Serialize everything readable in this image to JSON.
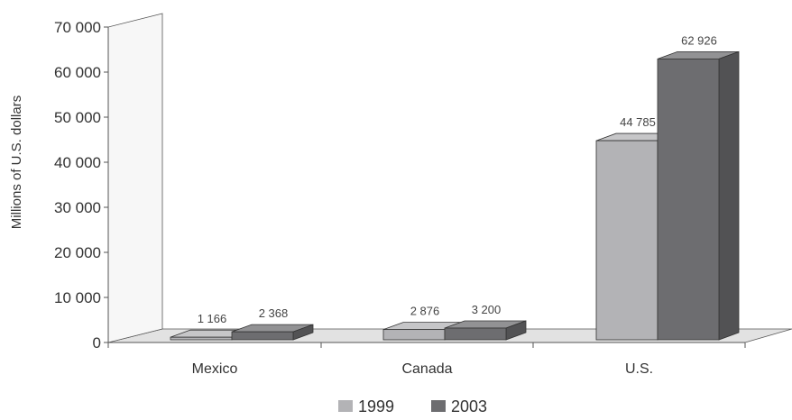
{
  "chart_data": {
    "type": "bar",
    "title": "",
    "xlabel": "",
    "ylabel": "Millions of U.S. dollars",
    "ylim": [
      0,
      70000
    ],
    "yticks": [
      0,
      10000,
      20000,
      30000,
      40000,
      50000,
      60000,
      70000
    ],
    "ytick_labels": [
      "0",
      "10 000",
      "20 000",
      "30 000",
      "40 000",
      "50 000",
      "60 000",
      "70 000"
    ],
    "categories": [
      "Mexico",
      "Canada",
      "U.S."
    ],
    "series": [
      {
        "name": "1999",
        "values": [
          1166,
          2876,
          44785
        ],
        "labels": [
          "1 166",
          "2 876",
          "44 785"
        ],
        "color": "#b3b3b6"
      },
      {
        "name": "2003",
        "values": [
          2368,
          3200,
          62926
        ],
        "labels": [
          "2 368",
          "3 200",
          "62 926"
        ],
        "color": "#6d6d70"
      }
    ],
    "grid": false,
    "style": "3d",
    "legend_position": "bottom"
  }
}
